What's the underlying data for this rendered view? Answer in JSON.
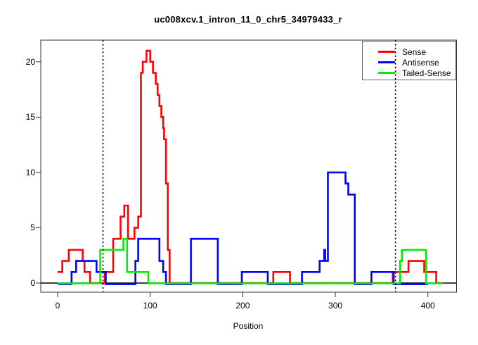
{
  "chart_data": {
    "type": "line",
    "subtype": "step",
    "title": "uc008xcv.1_intron_11_0_chr5_34979433_r",
    "xlabel": "Position",
    "ylabel": "",
    "x_ticks": [
      0,
      100,
      200,
      300,
      400
    ],
    "y_ticks": [
      0,
      5,
      10,
      15,
      20
    ],
    "xlim": [
      -18,
      431
    ],
    "ylim": [
      -0.9,
      22
    ],
    "grid": false,
    "baseline_zero_line": true,
    "vlines": {
      "style": "dotted",
      "color": "#000000",
      "positions": [
        49,
        365
      ]
    },
    "legend": {
      "position": "topright",
      "border": true
    },
    "series": [
      {
        "name": "Sense",
        "color": "#ff0000",
        "end": 415,
        "points": [
          [
            0,
            1
          ],
          [
            5,
            2
          ],
          [
            12,
            3
          ],
          [
            27,
            2
          ],
          [
            29,
            1
          ],
          [
            35,
            0
          ],
          [
            51,
            1
          ],
          [
            60,
            4
          ],
          [
            68,
            6
          ],
          [
            72,
            7
          ],
          [
            76,
            4
          ],
          [
            83,
            5
          ],
          [
            87,
            6
          ],
          [
            90,
            19
          ],
          [
            92,
            20
          ],
          [
            96,
            21
          ],
          [
            100,
            20
          ],
          [
            103,
            19
          ],
          [
            106,
            18
          ],
          [
            108,
            17
          ],
          [
            110,
            16
          ],
          [
            112,
            15
          ],
          [
            114,
            14
          ],
          [
            115,
            13
          ],
          [
            117,
            9
          ],
          [
            119,
            3
          ],
          [
            121,
            0
          ],
          [
            233,
            1
          ],
          [
            251,
            0
          ],
          [
            362,
            1
          ],
          [
            379,
            2
          ],
          [
            396,
            1
          ],
          [
            409,
            0
          ]
        ]
      },
      {
        "name": "Antisense",
        "color": "#0000ff",
        "end": 400,
        "points": [
          [
            0,
            0
          ],
          [
            15,
            1
          ],
          [
            20,
            2
          ],
          [
            42,
            1
          ],
          [
            52,
            0
          ],
          [
            84,
            2
          ],
          [
            87,
            4
          ],
          [
            110,
            2
          ],
          [
            114,
            1
          ],
          [
            117,
            0
          ],
          [
            144,
            4
          ],
          [
            173,
            0
          ],
          [
            199,
            1
          ],
          [
            227,
            0
          ],
          [
            264,
            1
          ],
          [
            283,
            2
          ],
          [
            288,
            3
          ],
          [
            289,
            2
          ],
          [
            292,
            10
          ],
          [
            311,
            9
          ],
          [
            314,
            8
          ],
          [
            321,
            0
          ],
          [
            339,
            1
          ],
          [
            363,
            0
          ]
        ]
      },
      {
        "name": "Tailed-Sense",
        "color": "#00ee00",
        "end": 416,
        "points": [
          [
            0,
            0
          ],
          [
            46,
            3
          ],
          [
            71,
            4
          ],
          [
            75,
            1
          ],
          [
            98,
            0
          ],
          [
            370,
            2
          ],
          [
            372,
            3
          ],
          [
            398,
            0
          ]
        ]
      }
    ]
  }
}
